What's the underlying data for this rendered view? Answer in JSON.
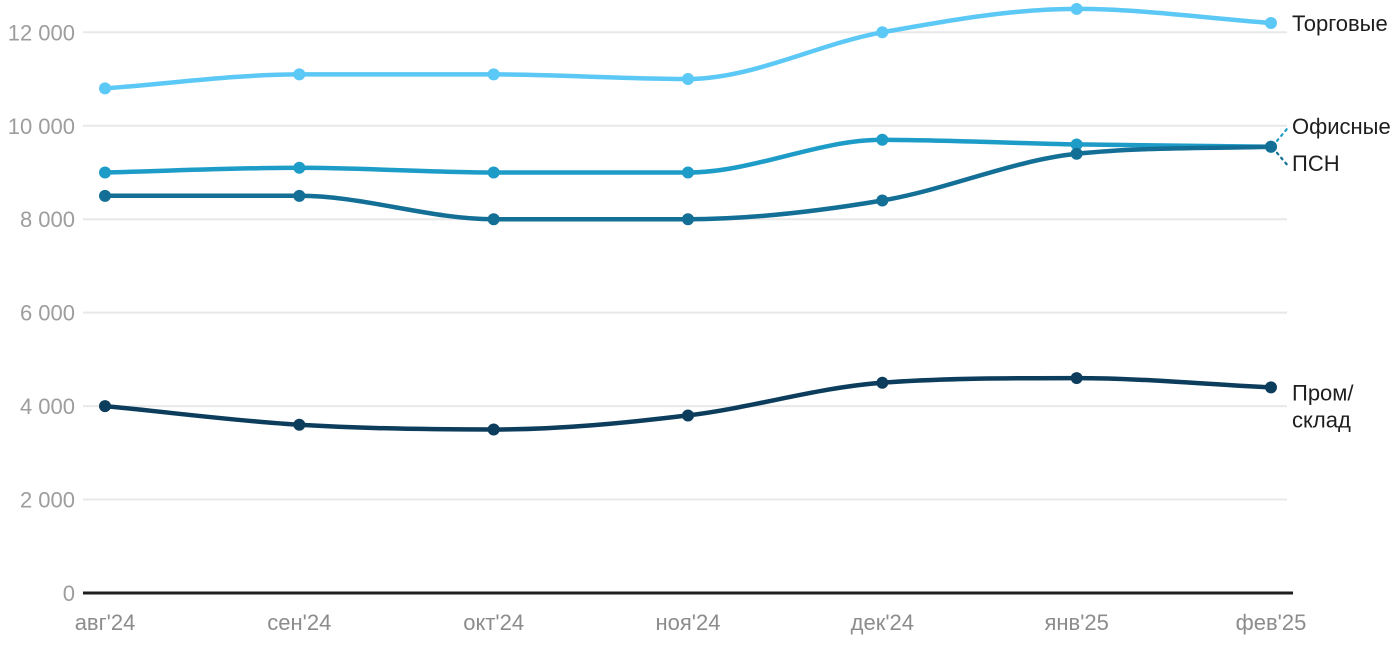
{
  "chart_data": {
    "type": "line",
    "x_labels": [
      "авг'24",
      "сен'24",
      "окт'24",
      "ноя'24",
      "дек'24",
      "янв'25",
      "фев'25"
    ],
    "yticks": [
      0,
      2000,
      4000,
      6000,
      8000,
      10000,
      12000
    ],
    "ytick_labels": [
      "0",
      "2 000",
      "4 000",
      "6 000",
      "8 000",
      "10 000",
      "12 000"
    ],
    "ylim": [
      0,
      12600
    ],
    "grid": true,
    "legend_position": "end-of-line-right",
    "series": [
      {
        "name": "Торговые",
        "label_lines": [
          "Торговые"
        ],
        "color": "#5BC8F5",
        "values": [
          10800,
          11100,
          11100,
          11000,
          12000,
          12500,
          12200
        ]
      },
      {
        "name": "Офисные",
        "label_lines": [
          "Офисные"
        ],
        "color": "#1E9CC8",
        "values": [
          9000,
          9100,
          9000,
          9000,
          9700,
          9600,
          9550
        ]
      },
      {
        "name": "ПСН",
        "label_lines": [
          "ПСН"
        ],
        "color": "#136F96",
        "values": [
          8500,
          8500,
          8000,
          8000,
          8400,
          9400,
          9550
        ]
      },
      {
        "name": "Пром/склад",
        "label_lines": [
          "Пром/",
          "склад"
        ],
        "color": "#0D3D5C",
        "values": [
          4000,
          3600,
          3500,
          3800,
          4500,
          4600,
          4400
        ]
      }
    ],
    "colors": {
      "grid": "#E8E8E8",
      "axis": "#1F1F1F",
      "ytick_text": "#9D9D9D",
      "xtick_text": "#8C8C8C",
      "legend_text": "#1E1E1E",
      "background": "#FFFFFF"
    }
  }
}
